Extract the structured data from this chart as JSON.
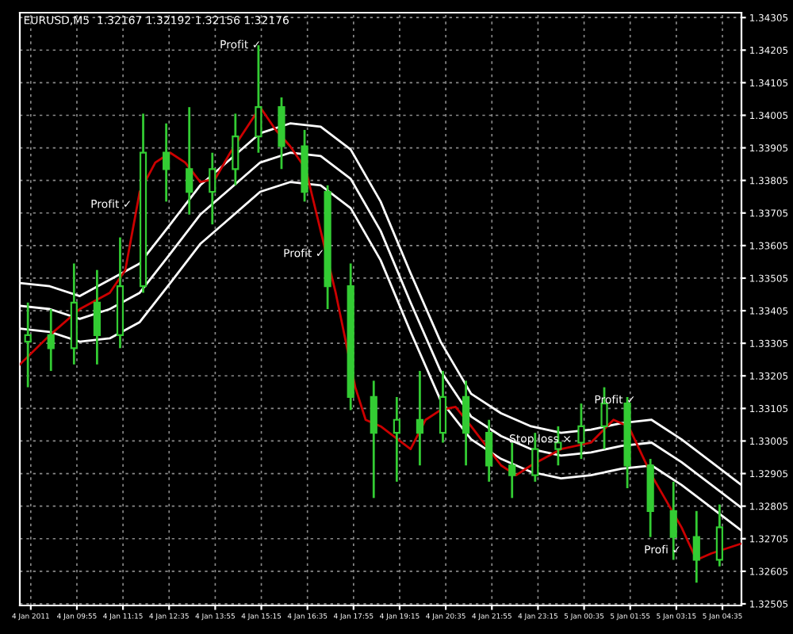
{
  "chart_data": {
    "type": "candlestick",
    "title": "EURUSD,M5  1.32167 1.32192 1.32156 1.32176",
    "color": "#33cc33",
    "x": [
      "2011-01-04T08:30",
      "2011-01-04T09:10",
      "2011-01-04T09:50",
      "2011-01-04T10:30",
      "2011-01-04T11:10",
      "2011-01-04T11:50",
      "2011-01-04T12:30",
      "2011-01-04T13:10",
      "2011-01-04T13:50",
      "2011-01-04T14:30",
      "2011-01-04T15:10",
      "2011-01-04T15:50",
      "2011-01-04T16:30",
      "2011-01-04T17:10",
      "2011-01-04T17:50",
      "2011-01-04T18:30",
      "2011-01-04T19:10",
      "2011-01-04T19:50",
      "2011-01-04T20:30",
      "2011-01-04T21:10",
      "2011-01-04T21:50",
      "2011-01-04T22:30",
      "2011-01-04T23:10",
      "2011-01-04T23:50",
      "2011-01-05T00:30",
      "2011-01-05T01:10",
      "2011-01-05T01:50",
      "2011-01-05T02:30",
      "2011-01-05T03:10",
      "2011-01-05T03:50",
      "2011-01-05T04:30"
    ],
    "ohlc": [
      [
        1.3331,
        1.3343,
        1.3317,
        1.3333
      ],
      [
        1.3333,
        1.3341,
        1.3322,
        1.3329
      ],
      [
        1.3329,
        1.3355,
        1.3324,
        1.3343
      ],
      [
        1.3343,
        1.3353,
        1.3324,
        1.3333
      ],
      [
        1.3333,
        1.3363,
        1.3329,
        1.3348
      ],
      [
        1.3348,
        1.3401,
        1.3346,
        1.3389
      ],
      [
        1.3389,
        1.3398,
        1.3374,
        1.3384
      ],
      [
        1.3384,
        1.3403,
        1.337,
        1.3377
      ],
      [
        1.3377,
        1.3389,
        1.3367,
        1.3384
      ],
      [
        1.3384,
        1.3401,
        1.3379,
        1.3394
      ],
      [
        1.3394,
        1.3422,
        1.3389,
        1.3403
      ],
      [
        1.3403,
        1.3406,
        1.3384,
        1.3391
      ],
      [
        1.3391,
        1.3396,
        1.3374,
        1.3377
      ],
      [
        1.3377,
        1.3379,
        1.3341,
        1.3348
      ],
      [
        1.3348,
        1.3355,
        1.331,
        1.3314
      ],
      [
        1.3314,
        1.3319,
        1.3283,
        1.3303
      ],
      [
        1.3303,
        1.3314,
        1.3288,
        1.3307
      ],
      [
        1.3307,
        1.3322,
        1.3293,
        1.3303
      ],
      [
        1.3303,
        1.3322,
        1.33,
        1.3314
      ],
      [
        1.3314,
        1.3319,
        1.3293,
        1.3303
      ],
      [
        1.3303,
        1.3307,
        1.3288,
        1.3293
      ],
      [
        1.3293,
        1.33,
        1.3283,
        1.329
      ],
      [
        1.329,
        1.3303,
        1.3288,
        1.3298
      ],
      [
        1.3298,
        1.3305,
        1.3293,
        1.33
      ],
      [
        1.33,
        1.3312,
        1.3295,
        1.3305
      ],
      [
        1.3305,
        1.3317,
        1.3298,
        1.3312
      ],
      [
        1.3312,
        1.3314,
        1.3286,
        1.3293
      ],
      [
        1.3293,
        1.3295,
        1.3271,
        1.3279
      ],
      [
        1.3279,
        1.3288,
        1.3264,
        1.3271
      ],
      [
        1.3271,
        1.3279,
        1.3257,
        1.3264
      ],
      [
        1.3264,
        1.3281,
        1.3262,
        1.3274
      ]
    ],
    "series": [
      {
        "type": "line",
        "color": "#ffffff",
        "x": [
          "2011-01-04T08:16",
          "2011-01-04T09:08",
          "2011-01-04T10:00",
          "2011-01-04T10:52",
          "2011-01-04T11:44",
          "2011-01-04T12:37",
          "2011-01-04T13:29",
          "2011-01-04T14:21",
          "2011-01-04T15:13",
          "2011-01-04T16:05",
          "2011-01-04T16:58",
          "2011-01-04T17:50",
          "2011-01-04T18:42",
          "2011-01-04T19:34",
          "2011-01-04T20:26",
          "2011-01-04T21:19",
          "2011-01-04T22:11",
          "2011-01-04T23:03",
          "2011-01-04T23:55",
          "2011-01-05T00:47",
          "2011-01-05T01:40",
          "2011-01-05T02:32",
          "2011-01-05T03:24",
          "2011-01-05T04:16",
          "2011-01-05T05:08"
        ],
        "values": [
          1.3349,
          1.3348,
          1.3345,
          1.335,
          1.3355,
          1.3367,
          1.3379,
          1.3387,
          1.3395,
          1.3398,
          1.3397,
          1.339,
          1.3374,
          1.3352,
          1.3331,
          1.3315,
          1.3309,
          1.3305,
          1.3303,
          1.3304,
          1.3306,
          1.3307,
          1.3301,
          1.3294,
          1.3287
        ]
      },
      {
        "type": "line",
        "color": "#ffffff",
        "x": [
          "2011-01-04T08:16",
          "2011-01-04T09:08",
          "2011-01-04T10:00",
          "2011-01-04T10:52",
          "2011-01-04T11:44",
          "2011-01-04T12:37",
          "2011-01-04T13:29",
          "2011-01-04T14:21",
          "2011-01-04T15:13",
          "2011-01-04T16:05",
          "2011-01-04T16:58",
          "2011-01-04T17:50",
          "2011-01-04T18:42",
          "2011-01-04T19:34",
          "2011-01-04T20:26",
          "2011-01-04T21:19",
          "2011-01-04T22:11",
          "2011-01-04T23:03",
          "2011-01-04T23:55",
          "2011-01-05T00:47",
          "2011-01-05T01:40",
          "2011-01-05T02:32",
          "2011-01-05T03:24",
          "2011-01-05T04:16",
          "2011-01-05T05:08"
        ],
        "values": [
          1.3342,
          1.3341,
          1.3338,
          1.3341,
          1.3346,
          1.3358,
          1.337,
          1.3378,
          1.3386,
          1.3389,
          1.3388,
          1.3381,
          1.3365,
          1.3343,
          1.3322,
          1.3308,
          1.3302,
          1.3298,
          1.3296,
          1.3297,
          1.3299,
          1.33,
          1.3294,
          1.3287,
          1.328
        ]
      },
      {
        "type": "line",
        "color": "#ffffff",
        "x": [
          "2011-01-04T08:16",
          "2011-01-04T09:08",
          "2011-01-04T10:00",
          "2011-01-04T10:52",
          "2011-01-04T11:44",
          "2011-01-04T12:37",
          "2011-01-04T13:29",
          "2011-01-04T14:21",
          "2011-01-04T15:13",
          "2011-01-04T16:05",
          "2011-01-04T16:58",
          "2011-01-04T17:50",
          "2011-01-04T18:42",
          "2011-01-04T19:34",
          "2011-01-04T20:26",
          "2011-01-04T21:19",
          "2011-01-04T22:11",
          "2011-01-04T23:03",
          "2011-01-04T23:55",
          "2011-01-05T00:47",
          "2011-01-05T01:40",
          "2011-01-05T02:32",
          "2011-01-05T03:24",
          "2011-01-05T04:16",
          "2011-01-05T05:08"
        ],
        "values": [
          1.3335,
          1.3334,
          1.3331,
          1.3332,
          1.3337,
          1.3349,
          1.3361,
          1.3369,
          1.3377,
          1.338,
          1.3379,
          1.3372,
          1.3356,
          1.3334,
          1.3313,
          1.3301,
          1.3295,
          1.3291,
          1.3289,
          1.329,
          1.3292,
          1.3293,
          1.3287,
          1.328,
          1.3273
        ]
      },
      {
        "type": "line",
        "color": "#cc0000",
        "x": [
          "2011-01-04T08:16",
          "2011-01-04T09:08",
          "2011-01-04T10:00",
          "2011-01-04T10:52",
          "2011-01-04T11:19",
          "2011-01-04T11:44",
          "2011-01-04T12:11",
          "2011-01-04T12:37",
          "2011-01-04T13:03",
          "2011-01-04T13:29",
          "2011-01-04T13:55",
          "2011-01-04T14:21",
          "2011-01-04T14:47",
          "2011-01-04T15:13",
          "2011-01-04T15:40",
          "2011-01-04T16:05",
          "2011-01-04T16:32",
          "2011-01-04T16:58",
          "2011-01-04T17:24",
          "2011-01-04T17:58",
          "2011-01-04T18:16",
          "2011-01-04T18:42",
          "2011-01-04T19:34",
          "2011-01-04T20:00",
          "2011-01-04T20:26",
          "2011-01-04T20:52",
          "2011-01-04T21:19",
          "2011-01-04T22:11",
          "2011-01-04T22:37",
          "2011-01-04T23:03",
          "2011-01-04T23:55",
          "2011-01-05T00:47",
          "2011-01-05T01:26",
          "2011-01-05T01:52",
          "2011-01-05T02:32",
          "2011-01-05T03:24",
          "2011-01-05T03:50",
          "2011-01-05T04:16",
          "2011-01-05T05:08"
        ],
        "values": [
          1.3324,
          1.3333,
          1.3341,
          1.3346,
          1.3353,
          1.3377,
          1.3386,
          1.3389,
          1.3386,
          1.338,
          1.3381,
          1.3389,
          1.3396,
          1.3403,
          1.3396,
          1.3391,
          1.3384,
          1.3365,
          1.3346,
          1.3317,
          1.3307,
          1.3305,
          1.3298,
          1.3307,
          1.331,
          1.3311,
          1.3305,
          1.3293,
          1.329,
          1.3293,
          1.3298,
          1.33,
          1.3307,
          1.3305,
          1.329,
          1.3274,
          1.3264,
          1.3266,
          1.3269
        ]
      }
    ],
    "annotations": [
      "Profit ✓",
      "Profit ✓",
      "Profit ✓",
      "Stop loss ×",
      "Profit ✓",
      "Profi ✓"
    ],
    "xlim": [
      "2011-01-04T08:16",
      "2011-01-05T05:08"
    ],
    "ylim": [
      1.325,
      1.3432
    ],
    "xticks": [
      {
        "value": "2011-01-04T08:35",
        "label": "4 Jan 2011"
      },
      {
        "value": "2011-01-04T09:55",
        "label": "4 Jan 09:55"
      },
      {
        "value": "2011-01-04T11:15",
        "label": "4 Jan 11:15"
      },
      {
        "value": "2011-01-04T12:35",
        "label": "4 Jan 12:35"
      },
      {
        "value": "2011-01-04T13:55",
        "label": "4 Jan 13:55"
      },
      {
        "value": "2011-01-04T15:15",
        "label": "4 Jan 15:15"
      },
      {
        "value": "2011-01-04T16:35",
        "label": "4 Jan 16:35"
      },
      {
        "value": "2011-01-04T17:55",
        "label": "4 Jan 17:55"
      },
      {
        "value": "2011-01-04T19:15",
        "label": "4 Jan 19:15"
      },
      {
        "value": "2011-01-04T20:35",
        "label": "4 Jan 20:35"
      },
      {
        "value": "2011-01-04T21:55",
        "label": "4 Jan 21:55"
      },
      {
        "value": "2011-01-04T23:15",
        "label": "4 Jan 23:15"
      },
      {
        "value": "2011-01-05T00:35",
        "label": "5 Jan 00:35"
      },
      {
        "value": "2011-01-05T01:55",
        "label": "5 Jan 01:55"
      },
      {
        "value": "2011-01-05T03:15",
        "label": "5 Jan 03:15"
      },
      {
        "value": "2011-01-05T04:35",
        "label": "5 Jan 04:35"
      }
    ],
    "yticks": [
      1.34305,
      1.34205,
      1.34105,
      1.34005,
      1.33905,
      1.33805,
      1.33705,
      1.33605,
      1.33505,
      1.33405,
      1.33305,
      1.33205,
      1.33105,
      1.33005,
      1.32905,
      1.32805,
      1.32705,
      1.32605,
      1.32505
    ],
    "grid": true
  }
}
